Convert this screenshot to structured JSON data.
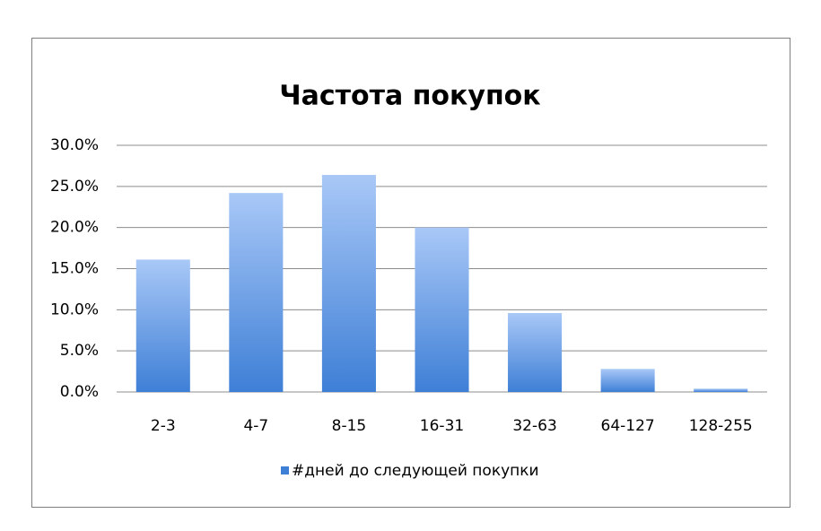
{
  "chart_data": {
    "type": "bar",
    "title": "Частота покупок",
    "categories": [
      "2-3",
      "4-7",
      "8-15",
      "16-31",
      "32-63",
      "64-127",
      "128-255"
    ],
    "series": [
      {
        "name": "#дней до следующей покупки",
        "color": "#3e7fd6",
        "values": [
          16.1,
          24.2,
          26.4,
          20.0,
          9.6,
          2.8,
          0.4
        ]
      }
    ],
    "ylim": [
      0,
      30
    ],
    "yticks": [
      {
        "value": 0,
        "label": "0.0%"
      },
      {
        "value": 5,
        "label": "5.0%"
      },
      {
        "value": 10,
        "label": "10.0%"
      },
      {
        "value": 15,
        "label": "15.0%"
      },
      {
        "value": 20,
        "label": "20.0%"
      },
      {
        "value": 25,
        "label": "25.0%"
      },
      {
        "value": 30,
        "label": "30.0%"
      }
    ],
    "grid": true,
    "legend": "bottom"
  }
}
